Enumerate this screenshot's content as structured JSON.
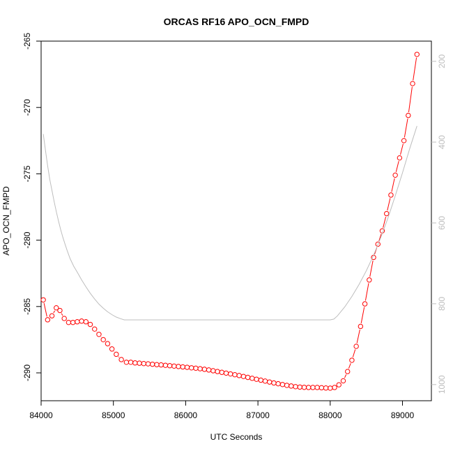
{
  "chart_data": {
    "type": "line",
    "title": "ORCAS RF16 APO_OCN_FMPD",
    "xlabel": "UTC Seconds",
    "ylabel": "APO_OCN_FMPD",
    "xlim": [
      84000,
      89400
    ],
    "ylim": [
      -292.1,
      -265.0
    ],
    "xticks": [
      84000,
      85000,
      86000,
      87000,
      88000,
      89000
    ],
    "yticks": [
      -265,
      -270,
      -275,
      -280,
      -285,
      -290
    ],
    "y2lim": [
      1040,
      150
    ],
    "y2ticks": [
      200,
      400,
      600,
      800,
      1000
    ],
    "grid": false,
    "series": [
      {
        "color": "#ff0000",
        "marker": "open-circle",
        "x": [
          84030,
          84090,
          84150,
          84210,
          84260,
          84320,
          84380,
          84440,
          84500,
          84560,
          84620,
          84680,
          84740,
          84800,
          84860,
          84920,
          84980,
          85040,
          85110,
          85180,
          85240,
          85300,
          85360,
          85420,
          85480,
          85540,
          85600,
          85660,
          85720,
          85780,
          85840,
          85900,
          85960,
          86020,
          86080,
          86140,
          86200,
          86260,
          86320,
          86380,
          86440,
          86500,
          86560,
          86620,
          86680,
          86740,
          86800,
          86860,
          86920,
          86980,
          87040,
          87100,
          87160,
          87220,
          87280,
          87340,
          87400,
          87460,
          87520,
          87580,
          87640,
          87700,
          87760,
          87820,
          87880,
          87940,
          88000,
          88060,
          88120,
          88180,
          88240,
          88300,
          88360,
          88420,
          88480,
          88540,
          88600,
          88660,
          88720,
          88780,
          88840,
          88900,
          88960,
          89020,
          89080,
          89140,
          89200
        ],
        "y": [
          -284.5,
          -286.0,
          -285.7,
          -285.1,
          -285.3,
          -285.9,
          -286.2,
          -286.2,
          -286.15,
          -286.1,
          -286.15,
          -286.35,
          -286.7,
          -287.1,
          -287.5,
          -287.8,
          -288.2,
          -288.6,
          -289.0,
          -289.2,
          -289.2,
          -289.25,
          -289.27,
          -289.3,
          -289.32,
          -289.35,
          -289.38,
          -289.4,
          -289.43,
          -289.46,
          -289.49,
          -289.52,
          -289.55,
          -289.58,
          -289.62,
          -289.65,
          -289.69,
          -289.73,
          -289.78,
          -289.84,
          -289.9,
          -289.96,
          -290.02,
          -290.08,
          -290.14,
          -290.2,
          -290.27,
          -290.34,
          -290.41,
          -290.48,
          -290.55,
          -290.62,
          -290.69,
          -290.76,
          -290.82,
          -290.88,
          -290.94,
          -290.99,
          -291.04,
          -291.07,
          -291.09,
          -291.1,
          -291.1,
          -291.1,
          -291.12,
          -291.14,
          -291.15,
          -291.1,
          -290.9,
          -290.6,
          -289.9,
          -289.05,
          -288.0,
          -286.5,
          -284.8,
          -283.0,
          -281.3,
          -280.3,
          -279.3,
          -278.0,
          -276.6,
          -275.1,
          -273.8,
          -272.5,
          -270.6,
          -268.2,
          -266.0
        ]
      },
      {
        "color": "#bdbdbd",
        "axis": "right",
        "x": [
          84030,
          84060,
          84090,
          84120,
          84150,
          84180,
          84210,
          84240,
          84270,
          84300,
          84330,
          84360,
          84400,
          84450,
          84500,
          84560,
          84620,
          84680,
          84740,
          84800,
          84860,
          84920,
          84980,
          85040,
          85100,
          85150,
          85200,
          85300,
          86000,
          87000,
          88000,
          88050,
          88100,
          88200,
          88300,
          88400,
          88500,
          88600,
          88700,
          88800,
          88900,
          89000,
          89100,
          89200
        ],
        "y": [
          380,
          420,
          458,
          492,
          520,
          547,
          572,
          595,
          616,
          635,
          652,
          668,
          688,
          707,
          722,
          741,
          758,
          774,
          788,
          801,
          811,
          820,
          827,
          833,
          837,
          840,
          840,
          840,
          840,
          840,
          840,
          838,
          830,
          808,
          782,
          752,
          718,
          680,
          636,
          587,
          533,
          476,
          416,
          360
        ]
      }
    ]
  }
}
